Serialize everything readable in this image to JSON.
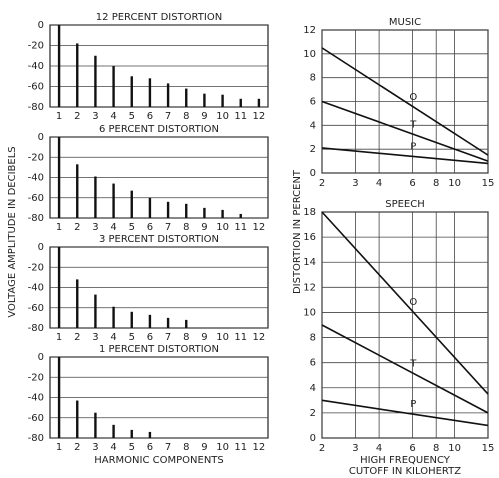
{
  "chart_data": [
    {
      "type": "bar",
      "title": "12 PERCENT DISTORTION",
      "ylabel": "VOLTAGE AMPLITUDE IN DECIBELS",
      "categories": [
        "1",
        "2",
        "3",
        "4",
        "5",
        "6",
        "7",
        "8",
        "9",
        "10",
        "11",
        "12"
      ],
      "values": [
        0,
        -18,
        -30,
        -40,
        -50,
        -52,
        -57,
        -62,
        -67,
        -68,
        -72,
        -72
      ],
      "ylim": [
        -80,
        0
      ],
      "yticks": [
        0,
        -20,
        -40,
        -60,
        -80
      ],
      "grid": true,
      "color": "#111111"
    },
    {
      "type": "bar",
      "title": "6 PERCENT DISTORTION",
      "categories": [
        "1",
        "2",
        "3",
        "4",
        "5",
        "6",
        "7",
        "8",
        "9",
        "10",
        "11",
        "12"
      ],
      "values": [
        0,
        -27,
        -39,
        -46,
        -53,
        -60,
        -64,
        -66,
        -70,
        -72,
        -76,
        null
      ],
      "ylim": [
        -80,
        0
      ],
      "yticks": [
        0,
        -20,
        -40,
        -60,
        -80
      ],
      "grid": true,
      "color": "#111111"
    },
    {
      "type": "bar",
      "title": "3 PERCENT DISTORTION",
      "categories": [
        "1",
        "2",
        "3",
        "4",
        "5",
        "6",
        "7",
        "8",
        "9",
        "10",
        "11",
        "12"
      ],
      "values": [
        0,
        -32,
        -47,
        -59,
        -64,
        -67,
        -70,
        -72,
        null,
        null,
        null,
        null
      ],
      "ylim": [
        -80,
        0
      ],
      "yticks": [
        0,
        -20,
        -40,
        -60,
        -80
      ],
      "grid": true,
      "color": "#111111"
    },
    {
      "type": "bar",
      "title": "1 PERCENT DISTORTION",
      "xlabel": "HARMONIC COMPONENTS",
      "categories": [
        "1",
        "2",
        "3",
        "4",
        "5",
        "6",
        "7",
        "8",
        "9",
        "10",
        "11",
        "12"
      ],
      "values": [
        0,
        -43,
        -55,
        -67,
        -72,
        -74,
        null,
        null,
        null,
        null,
        null,
        null
      ],
      "ylim": [
        -80,
        0
      ],
      "yticks": [
        0,
        -20,
        -40,
        -60,
        -80
      ],
      "grid": true,
      "color": "#111111"
    },
    {
      "type": "line",
      "title": "MUSIC",
      "ylabel": "DISTORTION IN PERCENT",
      "xscale": "log",
      "grid": true,
      "x": [
        2,
        15
      ],
      "xlim": [
        2,
        15
      ],
      "xticks": [
        2,
        3,
        4,
        6,
        8,
        10,
        15
      ],
      "ylim": [
        0,
        12
      ],
      "yticks": [
        0,
        2,
        4,
        6,
        8,
        10,
        12
      ],
      "series": [
        {
          "name": "O",
          "color": "#111111",
          "values": [
            10.5,
            1.5
          ]
        },
        {
          "name": "T",
          "color": "#111111",
          "values": [
            6,
            1
          ]
        },
        {
          "name": "P",
          "color": "#111111",
          "values": [
            2.1,
            0.8
          ]
        }
      ]
    },
    {
      "type": "line",
      "title": "SPEECH",
      "xlabel": [
        "HIGH FREQUENCY",
        "CUTOFF IN KILOHERTZ"
      ],
      "xscale": "log",
      "grid": true,
      "x": [
        2,
        15
      ],
      "xlim": [
        2,
        15
      ],
      "xticks": [
        2,
        3,
        4,
        6,
        8,
        10,
        15
      ],
      "ylim": [
        0,
        18
      ],
      "yticks": [
        0,
        2,
        4,
        6,
        8,
        10,
        12,
        14,
        16,
        18
      ],
      "series": [
        {
          "name": "O",
          "color": "#111111",
          "values": [
            18,
            3.5
          ]
        },
        {
          "name": "T",
          "color": "#111111",
          "values": [
            9,
            2
          ]
        },
        {
          "name": "P",
          "color": "#111111",
          "values": [
            3,
            1
          ]
        }
      ]
    }
  ]
}
